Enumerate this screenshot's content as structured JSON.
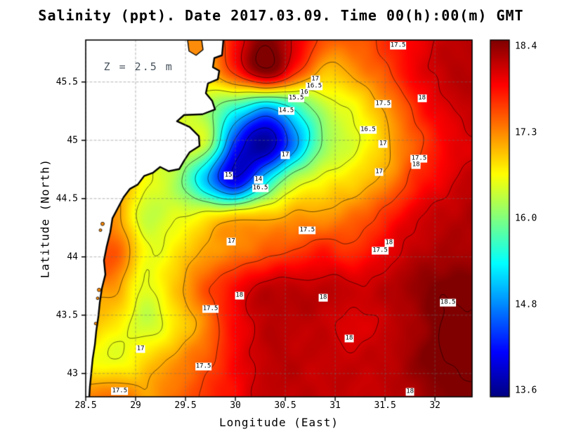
{
  "chart_data": {
    "type": "heatmap",
    "title": "Salinity (ppt). Date 2017.03.09. Time 00(h):00(m) GMT",
    "variable": "Salinity (ppt)",
    "date": "2017.03.09",
    "time": "00(h):00(m) GMT",
    "annotation": "Z = 2.5 m",
    "annotation_pos": [
      28.68,
      45.64
    ],
    "x_axis": {
      "label": "Longitude (East)",
      "range": [
        28.5,
        32.372
      ],
      "ticks": [
        {
          "v": 28.5,
          "label": "28.5"
        },
        {
          "v": 29,
          "label": "29"
        },
        {
          "v": 29.5,
          "label": "29.5"
        },
        {
          "v": 30,
          "label": "30"
        },
        {
          "v": 30.5,
          "label": "30.5"
        },
        {
          "v": 31,
          "label": "31"
        },
        {
          "v": 31.5,
          "label": "31.5"
        },
        {
          "v": 32,
          "label": "32"
        }
      ]
    },
    "y_axis": {
      "label": "Latitude (North)",
      "range": [
        42.8,
        45.86
      ],
      "ticks": [
        {
          "v": 45.5,
          "label": "45.5"
        },
        {
          "v": 45,
          "label": "45"
        },
        {
          "v": 44.5,
          "label": "44.5"
        },
        {
          "v": 44,
          "label": "44"
        },
        {
          "v": 43.5,
          "label": "43.5"
        },
        {
          "v": 43,
          "label": "43"
        }
      ]
    },
    "colorbar": {
      "min": 13.6,
      "max": 18.4,
      "colormap": "jet",
      "labels": [
        "18.4",
        "17.3",
        "16.0",
        "14.8",
        "13.6"
      ]
    },
    "grid": {
      "lons": [
        28.5,
        28.8,
        29.1,
        29.4,
        29.7,
        30.0,
        30.3,
        30.6,
        30.9,
        31.2,
        31.5,
        31.8,
        32.1,
        32.4
      ],
      "lats": [
        45.9,
        45.59,
        45.28,
        44.97,
        44.66,
        44.35,
        44.04,
        43.73,
        43.42,
        43.11,
        42.8
      ],
      "values": [
        [
          17.2,
          17.2,
          17.05,
          17.05,
          17.05,
          17.8,
          18.35,
          17.95,
          17.45,
          17.4,
          17.6,
          17.85,
          18.05,
          18.15
        ],
        [
          17.2,
          17.2,
          17.05,
          16.85,
          16.85,
          17.6,
          18.4,
          17.6,
          16.9,
          17.1,
          17.45,
          17.85,
          18.1,
          18.15
        ],
        [
          17.05,
          17.05,
          16.8,
          16.55,
          16.2,
          15.6,
          15.05,
          15.6,
          16.3,
          16.6,
          17.05,
          17.6,
          17.95,
          18.1
        ],
        [
          16.85,
          16.85,
          16.6,
          16.4,
          16.3,
          14.4,
          13.7,
          14.9,
          16.1,
          16.45,
          16.9,
          17.4,
          17.8,
          18.0
        ],
        [
          17.1,
          17.1,
          16.55,
          16.2,
          15.1,
          14.05,
          15.3,
          16.3,
          16.6,
          16.8,
          17.1,
          17.6,
          17.9,
          18.1
        ],
        [
          17.1,
          17.05,
          16.35,
          16.45,
          16.65,
          16.85,
          16.9,
          17.05,
          17.1,
          17.3,
          17.6,
          17.95,
          18.1,
          18.2
        ],
        [
          17.3,
          17.4,
          16.55,
          16.7,
          17.05,
          17.2,
          17.4,
          17.55,
          17.7,
          17.6,
          17.9,
          18.1,
          18.2,
          18.2
        ],
        [
          17.1,
          17.05,
          16.45,
          16.9,
          17.4,
          17.8,
          18.1,
          18.1,
          18.1,
          18.05,
          18.1,
          18.3,
          18.45,
          18.45
        ],
        [
          16.9,
          16.7,
          16.35,
          16.7,
          17.2,
          17.8,
          18.1,
          18.1,
          18.07,
          17.92,
          18.07,
          18.2,
          18.53,
          18.55
        ],
        [
          16.6,
          16.5,
          16.8,
          17.1,
          17.4,
          17.8,
          18.1,
          18.1,
          18.07,
          18.07,
          18.1,
          18.3,
          18.53,
          18.55
        ],
        [
          17.2,
          17.3,
          17.05,
          17.3,
          17.55,
          17.8,
          18.07,
          18.1,
          18.07,
          18.07,
          18.07,
          18.2,
          18.35,
          18.45
        ]
      ]
    },
    "contour_levels": [
      14,
      14.5,
      15,
      15.5,
      16,
      16.5,
      17,
      17.5,
      18,
      18.5
    ],
    "contour_labels": [
      {
        "text": "17.5",
        "lon": 31.63,
        "lat": 45.81
      },
      {
        "text": "17",
        "lon": 30.8,
        "lat": 45.52
      },
      {
        "text": "16.5",
        "lon": 30.79,
        "lat": 45.46
      },
      {
        "text": "16",
        "lon": 30.69,
        "lat": 45.41
      },
      {
        "text": "15.5",
        "lon": 30.61,
        "lat": 45.36
      },
      {
        "text": "14.5",
        "lon": 30.51,
        "lat": 45.25
      },
      {
        "text": "17.5",
        "lon": 31.48,
        "lat": 45.31
      },
      {
        "text": "18",
        "lon": 31.87,
        "lat": 45.36
      },
      {
        "text": "16.5",
        "lon": 31.33,
        "lat": 45.09
      },
      {
        "text": "17",
        "lon": 31.48,
        "lat": 44.97
      },
      {
        "text": "17.5",
        "lon": 31.84,
        "lat": 44.84
      },
      {
        "text": "18",
        "lon": 31.81,
        "lat": 44.79
      },
      {
        "text": "17",
        "lon": 30.5,
        "lat": 44.87
      },
      {
        "text": "17",
        "lon": 31.44,
        "lat": 44.73
      },
      {
        "text": "15",
        "lon": 29.93,
        "lat": 44.7
      },
      {
        "text": "14",
        "lon": 30.23,
        "lat": 44.66
      },
      {
        "text": "16.5",
        "lon": 30.25,
        "lat": 44.59
      },
      {
        "text": "17.5",
        "lon": 30.72,
        "lat": 44.23
      },
      {
        "text": "17",
        "lon": 29.96,
        "lat": 44.13
      },
      {
        "text": "18",
        "lon": 31.54,
        "lat": 44.12
      },
      {
        "text": "17.5",
        "lon": 31.45,
        "lat": 44.05
      },
      {
        "text": "18",
        "lon": 30.04,
        "lat": 43.67
      },
      {
        "text": "18",
        "lon": 30.88,
        "lat": 43.65
      },
      {
        "text": "18.5",
        "lon": 32.13,
        "lat": 43.61
      },
      {
        "text": "17.5",
        "lon": 29.75,
        "lat": 43.55
      },
      {
        "text": "17",
        "lon": 29.05,
        "lat": 43.21
      },
      {
        "text": "18",
        "lon": 31.14,
        "lat": 43.3
      },
      {
        "text": "17.5",
        "lon": 29.68,
        "lat": 43.06
      },
      {
        "text": "17.5",
        "lon": 28.84,
        "lat": 42.85
      },
      {
        "text": "18",
        "lon": 31.75,
        "lat": 42.84
      }
    ],
    "coastline": [
      [
        29.88,
        45.86
      ],
      [
        29.866,
        45.729
      ],
      [
        29.789,
        45.705
      ],
      [
        29.775,
        45.627
      ],
      [
        29.838,
        45.596
      ],
      [
        29.824,
        45.524
      ],
      [
        29.725,
        45.488
      ],
      [
        29.704,
        45.404
      ],
      [
        29.768,
        45.337
      ],
      [
        29.796,
        45.265
      ],
      [
        29.669,
        45.223
      ],
      [
        29.486,
        45.217
      ],
      [
        29.415,
        45.163
      ],
      [
        29.542,
        45.114
      ],
      [
        29.634,
        45.036
      ],
      [
        29.641,
        44.952
      ],
      [
        29.542,
        44.898
      ],
      [
        29.486,
        44.825
      ],
      [
        29.437,
        44.753
      ],
      [
        29.331,
        44.735
      ],
      [
        29.246,
        44.771
      ],
      [
        29.176,
        44.723
      ],
      [
        29.085,
        44.693
      ],
      [
        29.021,
        44.62
      ],
      [
        28.944,
        44.584
      ],
      [
        28.88,
        44.512
      ],
      [
        28.824,
        44.422
      ],
      [
        28.768,
        44.331
      ],
      [
        28.746,
        44.211
      ],
      [
        28.711,
        44.09
      ],
      [
        28.683,
        43.97
      ],
      [
        28.697,
        43.849
      ],
      [
        28.662,
        43.729
      ],
      [
        28.641,
        43.608
      ],
      [
        28.627,
        43.488
      ],
      [
        28.606,
        43.367
      ],
      [
        28.592,
        43.247
      ],
      [
        28.57,
        43.127
      ],
      [
        28.556,
        43.006
      ],
      [
        28.542,
        42.886
      ],
      [
        28.535,
        42.79
      ]
    ],
    "lagoon": [
      [
        29.521,
        45.86
      ],
      [
        29.662,
        45.86
      ],
      [
        29.676,
        45.777
      ],
      [
        29.606,
        45.729
      ],
      [
        29.535,
        45.765
      ]
    ],
    "lakes": [
      {
        "lon": 28.669,
        "lat": 44.283,
        "r": 2.5
      },
      {
        "lon": 28.648,
        "lat": 44.229,
        "r": 2
      },
      {
        "lon": 28.634,
        "lat": 43.717,
        "r": 2.5
      },
      {
        "lon": 28.62,
        "lat": 43.645,
        "r": 2
      },
      {
        "lon": 28.6,
        "lat": 43.428,
        "r": 2
      }
    ],
    "styles": {
      "land_color": "#ffffff",
      "coast_color": "#000000",
      "lagoon_color": "#fc8c0a"
    }
  }
}
